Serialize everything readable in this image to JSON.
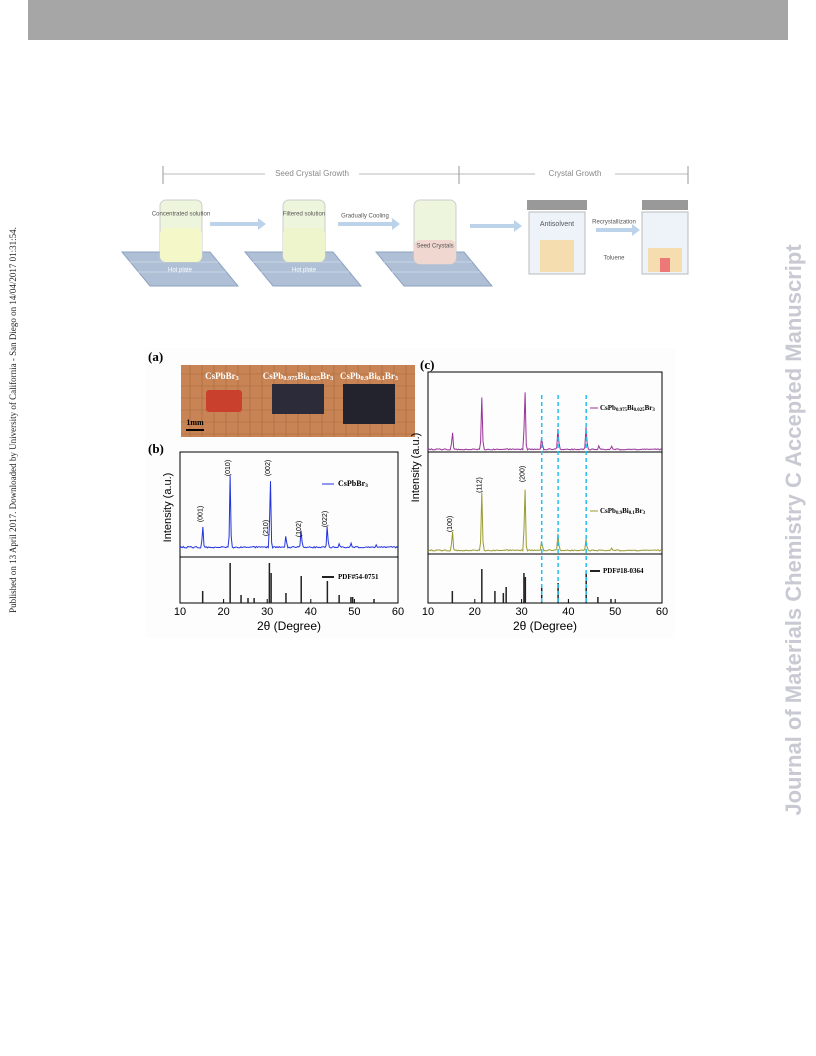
{
  "sidebar": {
    "left": "Published on 13 April 2017. Downloaded by University of California - San Diego on 14/04/2017 01:31:54.",
    "right": "Journal of Materials Chemistry C Accepted Manuscript"
  },
  "scheme": {
    "phases": [
      "Seed Crystal Growth",
      "Crystal Growth"
    ],
    "labels": [
      "Concentrated solution",
      "Hot plate",
      "Filtered solution",
      "Hot plate",
      "Gradually Cooling",
      "Seed Crystals",
      "Antisolvent",
      "Toluene",
      "Recrystallization"
    ]
  },
  "figure": {
    "panels": [
      "(a)",
      "(b)",
      "(c)"
    ],
    "photo": {
      "samples": [
        [
          "CsPbBr",
          "3"
        ],
        [
          "CsPb",
          "0.975",
          "Bi",
          "0.025",
          "Br",
          "3"
        ],
        [
          "CsPb",
          "0.9",
          "Bi",
          "0.1",
          "Br",
          "3"
        ]
      ],
      "scale": "1mm"
    },
    "b": {
      "ylabel": "Intensity (a.u.)",
      "xlabel": "2θ (Degree)",
      "xticks": [
        10,
        20,
        30,
        40,
        50,
        60
      ],
      "peaks": [
        "(001)",
        "(010)",
        "(002)",
        "(210)",
        "(102)",
        "(022)"
      ],
      "legend": [
        [
          "CsPbBr",
          "3"
        ],
        [
          "PDF#54-0751"
        ]
      ]
    },
    "c": {
      "ylabel": "Intensity (a.u.)",
      "xlabel": "2θ (Degree)",
      "xticks": [
        10,
        20,
        30,
        40,
        50,
        60
      ],
      "peaks": [
        "(100)",
        "(112)",
        "(200)"
      ],
      "legend": [
        [
          "CsPb",
          "0.975",
          "Bi",
          "0.025",
          "Br",
          "3"
        ],
        [
          "CsPb",
          "0.9",
          "Bi",
          "0.1",
          "Br",
          "3"
        ],
        [
          "PDF#18-0364"
        ]
      ]
    }
  }
}
